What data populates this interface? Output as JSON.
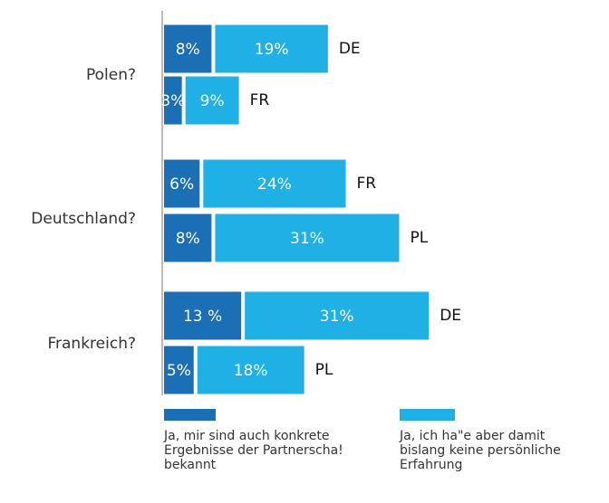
{
  "chart_data": {
    "type": "grouped-stacked-bar",
    "series": [
      {
        "name": "Ja, mir sind auch konkrete Ergebnisse der Partnerscha! bekannt",
        "color": "#1a6fb5"
      },
      {
        "name": "Ja, ich ha\"e aber damit bislang keine persönliche Erfahrung",
        "color": "#1fb0e6"
      }
    ],
    "groups": [
      {
        "category": "Polen?",
        "rows": [
          {
            "label": "DE",
            "values": [
              8,
              19
            ],
            "value_labels": [
              "8%",
              "19%"
            ]
          },
          {
            "label": "FR",
            "values": [
              3,
              9
            ],
            "value_labels": [
              "3%",
              "9%"
            ]
          }
        ]
      },
      {
        "category": "Deutschland?",
        "rows": [
          {
            "label": "FR",
            "values": [
              6,
              24
            ],
            "value_labels": [
              "6%",
              "24%"
            ]
          },
          {
            "label": "PL",
            "values": [
              8,
              31
            ],
            "value_labels": [
              "8%",
              "31%"
            ]
          }
        ]
      },
      {
        "category": "Frankreich?",
        "rows": [
          {
            "label": "DE",
            "values": [
              13,
              31
            ],
            "value_labels": [
              "13 %",
              "31%"
            ]
          },
          {
            "label": "PL",
            "values": [
              5,
              18
            ],
            "value_labels": [
              "5%",
              "18%"
            ]
          }
        ]
      }
    ]
  }
}
